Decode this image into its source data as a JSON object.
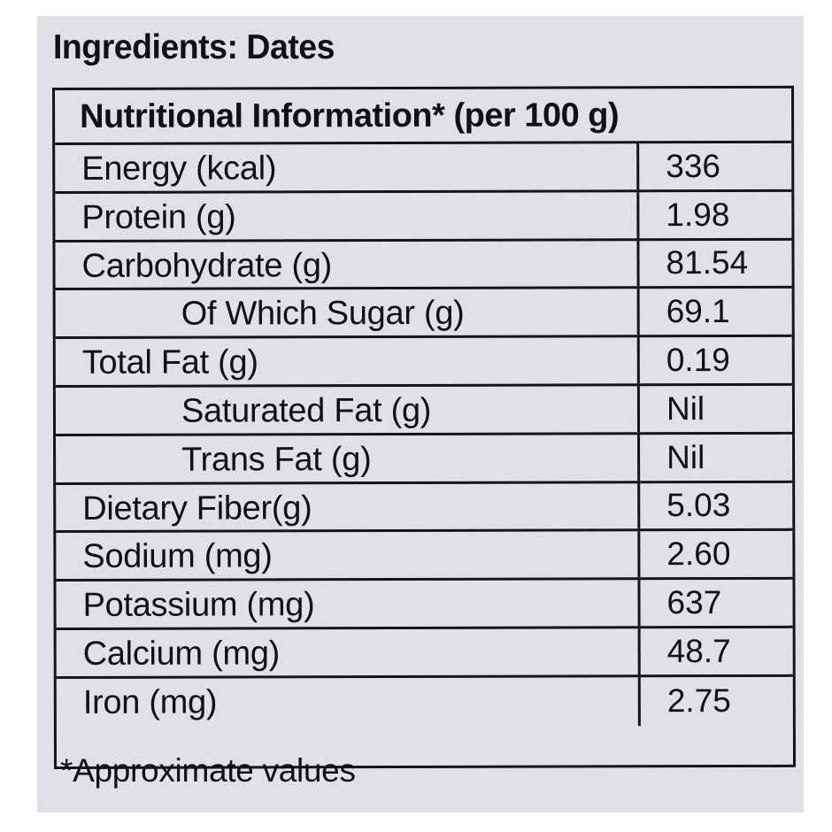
{
  "label": {
    "ingredients": "Ingredients: Dates",
    "table_heading": "Nutritional Information* (per 100 g)",
    "rows": [
      {
        "name": "Energy (kcal)",
        "value": "336"
      },
      {
        "name": "Protein (g)",
        "value": "1.98"
      },
      {
        "name": "Carbohydrate (g)",
        "value": "81.54"
      },
      {
        "name": "Of Which Sugar (g)",
        "value": "69.1"
      },
      {
        "name": "Total Fat (g)",
        "value": "0.19"
      },
      {
        "name": "Saturated Fat (g)",
        "value": "Nil"
      },
      {
        "name": "Trans Fat (g)",
        "value": "Nil"
      },
      {
        "name": "Dietary Fiber(g)",
        "value": "5.03"
      },
      {
        "name": "Sodium (mg)",
        "value": "2.60"
      },
      {
        "name": "Potassium (mg)",
        "value": "637"
      },
      {
        "name": "Calcium (mg)",
        "value": "48.7"
      },
      {
        "name": "Iron (mg)",
        "value": "2.75"
      }
    ],
    "footnote": "*Approximate values"
  },
  "colors": {
    "panel_background": "#dfe1e7",
    "ink": "#151515"
  }
}
